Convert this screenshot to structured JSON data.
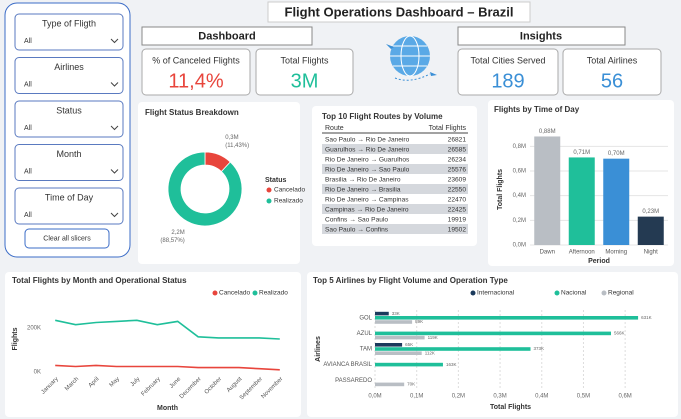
{
  "header": {
    "title": "Flight Operations Dashboard – Brazil",
    "dashboard": "Dashboard",
    "insights": "Insights"
  },
  "slicers": [
    {
      "label": "Type of Fligth",
      "value": "All"
    },
    {
      "label": "Airlines",
      "value": "All"
    },
    {
      "label": "Status",
      "value": "All"
    },
    {
      "label": "Month",
      "value": "All"
    },
    {
      "label": "Time of Day",
      "value": "All"
    }
  ],
  "clear_button": "Clear all slicers",
  "kpis": [
    {
      "label": "% of Canceled Flights",
      "value": "11,4%",
      "color": "#e8453c"
    },
    {
      "label": "Total Flights",
      "value": "3M",
      "color": "#1fbf9a"
    },
    {
      "label": "Total Cities Served",
      "value": "189",
      "color": "#3a8fd6"
    },
    {
      "label": "Total Airlines",
      "value": "56",
      "color": "#3a8fd6"
    }
  ],
  "table": {
    "title": "Top 10 Flight Routes by Volume",
    "columns": [
      "Route",
      "Total Flights"
    ],
    "rows": [
      [
        "Sao Paulo → Rio De Janeiro",
        26821
      ],
      [
        "Guarulhos → Rio De Janeiro",
        26585
      ],
      [
        "Rio De Janeiro → Guarulhos",
        26234
      ],
      [
        "Rio De Janeiro → Sao Paulo",
        25576
      ],
      [
        "Brasilia → Rio De Janeiro",
        23609
      ],
      [
        "Rio De Janeiro → Brasilia",
        22550
      ],
      [
        "Rio De Janeiro → Campinas",
        22470
      ],
      [
        "Campinas → Rio De Janeiro",
        22425
      ],
      [
        "Confins → Sao Paulo",
        19919
      ],
      [
        "Sao Paulo → Confins",
        19502
      ]
    ]
  },
  "chart_data": [
    {
      "type": "pie",
      "title": "Flight Status Breakdown",
      "legend_title": "Status",
      "categories": [
        "Cancelado",
        "Realizado"
      ],
      "values": [
        0.3,
        2.2
      ],
      "value_labels": [
        "0,3M",
        "2,2M"
      ],
      "percent_labels": [
        "(11,43%)",
        "(88,57%)"
      ],
      "colors": [
        "#e8453c",
        "#1fbf9a"
      ]
    },
    {
      "type": "bar",
      "title": "Flights by Time of Day",
      "x_label": "Period",
      "y_label": "Total Flights",
      "categories": [
        "Dawn",
        "Afternoon",
        "Morning",
        "Night"
      ],
      "values": [
        0.88,
        0.71,
        0.7,
        0.23
      ],
      "value_labels": [
        "0,88M",
        "0,71M",
        "0,70M",
        "0,23M"
      ],
      "colors": [
        "#b9bec4",
        "#1fbf9a",
        "#3a8fd6",
        "#243a52"
      ],
      "ylim": [
        0,
        0.9
      ],
      "yticks": [
        {
          "value": 0,
          "label": "0,0M"
        },
        {
          "value": 0.2,
          "label": "0,2M"
        },
        {
          "value": 0.4,
          "label": "0,4M"
        },
        {
          "value": 0.6,
          "label": "0,6M"
        },
        {
          "value": 0.8,
          "label": "0,8M"
        }
      ],
      "grid": true
    },
    {
      "type": "line",
      "title": "Total Flights by Month and Operational Status",
      "x_label": "Month",
      "y_label": "Flights",
      "categories": [
        "January",
        "March",
        "April",
        "May",
        "July",
        "February",
        "June",
        "December",
        "October",
        "August",
        "September",
        "November"
      ],
      "series": [
        {
          "name": "Cancelado",
          "color": "#e8453c",
          "values": [
            30,
            25,
            30,
            25,
            25,
            25,
            25,
            20,
            20,
            20,
            15,
            10
          ]
        },
        {
          "name": "Realizado",
          "color": "#1fbf9a",
          "values": [
            235,
            215,
            225,
            230,
            235,
            215,
            230,
            160,
            155,
            155,
            155,
            150
          ]
        }
      ],
      "ylim": [
        0,
        300
      ],
      "yticks": [
        {
          "value": 0,
          "label": "0K"
        },
        {
          "value": 200,
          "label": "200K"
        }
      ],
      "grid": false
    },
    {
      "type": "hbar",
      "title": "Top 5 Airlines by Flight Volume and Operation Type",
      "x_label": "Total Flights",
      "y_label": "Airlines",
      "categories": [
        "GOL",
        "AZUL",
        "TAM",
        "AVIANCA BRASIL",
        "PASSAREDO"
      ],
      "series": [
        {
          "name": "Internacional",
          "color": "#1b3a5c",
          "values": [
            0.033,
            null,
            0.065,
            null,
            null
          ],
          "value_labels": [
            "33K",
            null,
            "65K",
            null,
            null
          ]
        },
        {
          "name": "Nacional",
          "color": "#1fbf9a",
          "values": [
            0.631,
            0.566,
            0.373,
            0.163,
            null
          ],
          "value_labels": [
            "631K",
            "566K",
            "373K",
            "163K",
            null
          ]
        },
        {
          "name": "Regional",
          "color": "#b9bec4",
          "values": [
            0.089,
            0.119,
            0.112,
            null,
            0.07
          ],
          "value_labels": [
            "89K",
            "119K",
            "112K",
            null,
            "70K"
          ]
        }
      ],
      "xlim": [
        0,
        0.65
      ],
      "xticks": [
        {
          "value": 0,
          "label": "0,0M"
        },
        {
          "value": 0.1,
          "label": "0,1M"
        },
        {
          "value": 0.2,
          "label": "0,2M"
        },
        {
          "value": 0.3,
          "label": "0,3M"
        },
        {
          "value": 0.4,
          "label": "0,4M"
        },
        {
          "value": 0.5,
          "label": "0,5M"
        },
        {
          "value": 0.6,
          "label": "0,6M"
        }
      ],
      "grid": true
    }
  ]
}
